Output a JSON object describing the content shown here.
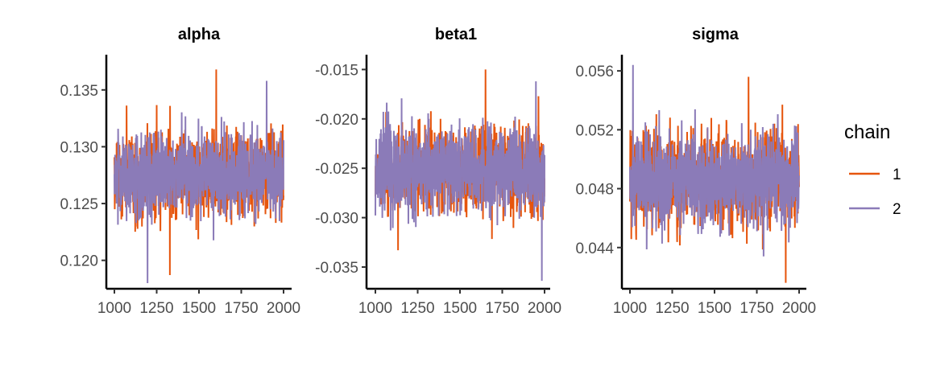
{
  "chart_data": {
    "type": "line",
    "description_type": "trace plot",
    "x_range": [
      1000,
      2000
    ],
    "x_ticks": [
      1000,
      1250,
      1500,
      1750,
      2000
    ],
    "x_tick_labels": [
      "1000",
      "1250",
      "1500",
      "1750",
      "2000"
    ],
    "legend": {
      "title": "chain",
      "placement": "right",
      "entries": [
        {
          "label": "1",
          "color": "#E6550D"
        },
        {
          "label": "2",
          "color": "#8B7BB8"
        }
      ]
    },
    "grid": false,
    "panels": [
      {
        "title": "alpha",
        "ylim": [
          0.1175,
          0.1381
        ],
        "y_ticks": [
          0.12,
          0.125,
          0.13,
          0.135
        ],
        "y_tick_labels": [
          "0.120",
          "0.125",
          "0.130",
          "0.135"
        ],
        "series": [
          {
            "name": "1",
            "mean": 0.1275,
            "sd": 0.0018,
            "min": 0.1187,
            "max": 0.1368
          },
          {
            "name": "2",
            "mean": 0.1275,
            "sd": 0.0018,
            "min": 0.118,
            "max": 0.1358
          }
        ]
      },
      {
        "title": "beta1",
        "ylim": [
          -0.0372,
          -0.0135
        ],
        "y_ticks": [
          -0.035,
          -0.03,
          -0.025,
          -0.02,
          -0.015
        ],
        "y_tick_labels": [
          "-0.035",
          "-0.030",
          "-0.025",
          "-0.020",
          "-0.015"
        ],
        "series": [
          {
            "name": "1",
            "mean": -0.0251,
            "sd": 0.0022,
            "min": -0.0333,
            "max": -0.015
          },
          {
            "name": "2",
            "mean": -0.0251,
            "sd": 0.0022,
            "min": -0.0364,
            "max": -0.0162
          }
        ]
      },
      {
        "title": "sigma",
        "ylim": [
          0.0412,
          0.0571
        ],
        "y_ticks": [
          0.044,
          0.048,
          0.052,
          0.056
        ],
        "y_tick_labels": [
          "0.044",
          "0.048",
          "0.052",
          "0.056"
        ],
        "series": [
          {
            "name": "1",
            "mean": 0.0485,
            "sd": 0.0016,
            "min": 0.0416,
            "max": 0.0556
          },
          {
            "name": "2",
            "mean": 0.0485,
            "sd": 0.0016,
            "min": 0.0434,
            "max": 0.0564
          }
        ]
      }
    ]
  }
}
